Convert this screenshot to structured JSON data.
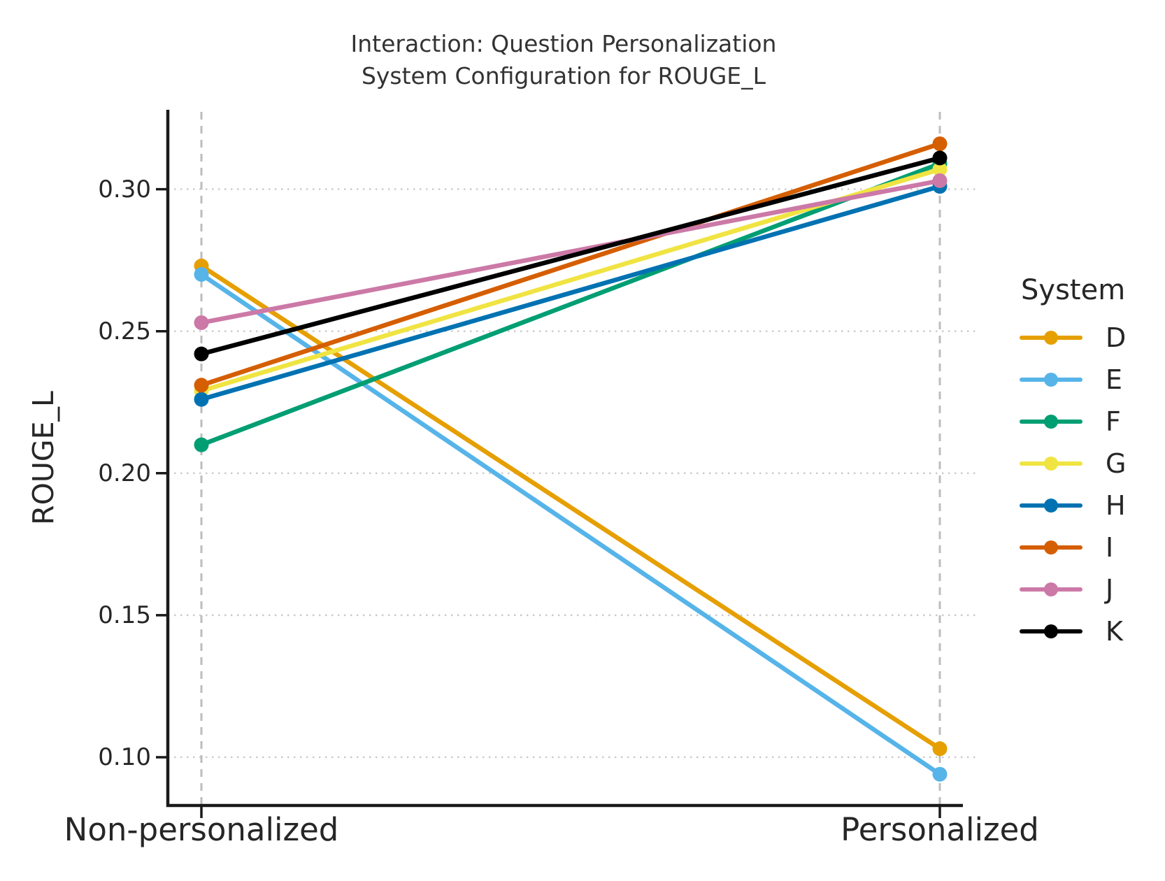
{
  "chart_data": {
    "type": "line",
    "title_lines": [
      "Interaction: Question Personalization",
      "System Configuration for ROUGE_L"
    ],
    "xlabel": "",
    "ylabel": "ROUGE_L",
    "categories": [
      "Non-personalized",
      "Personalized"
    ],
    "yticks": [
      0.1,
      0.15,
      0.2,
      0.25,
      0.3
    ],
    "ytick_labels": [
      "0.10",
      "0.15",
      "0.20",
      "0.25",
      "0.30"
    ],
    "ylim": [
      0.083,
      0.326
    ],
    "grid": {
      "horizontal": "dotted",
      "vertical": "dashed",
      "on": true
    },
    "legend_title": "System",
    "legend_position": "right",
    "series": [
      {
        "name": "D",
        "color": "#E69F00",
        "values": [
          0.273,
          0.103
        ]
      },
      {
        "name": "E",
        "color": "#56B4E9",
        "values": [
          0.27,
          0.094
        ]
      },
      {
        "name": "F",
        "color": "#009E73",
        "values": [
          0.21,
          0.309
        ]
      },
      {
        "name": "G",
        "color": "#F0E442",
        "values": [
          0.229,
          0.307
        ]
      },
      {
        "name": "H",
        "color": "#0072B2",
        "values": [
          0.226,
          0.301
        ]
      },
      {
        "name": "I",
        "color": "#D55E00",
        "values": [
          0.231,
          0.316
        ]
      },
      {
        "name": "J",
        "color": "#CC79A7",
        "values": [
          0.253,
          0.303
        ]
      },
      {
        "name": "K",
        "color": "#000000",
        "values": [
          0.242,
          0.311
        ]
      }
    ],
    "colors": {
      "spine": "#1a1a1a",
      "grid_dotted": "#c9c9c9",
      "grid_dashed": "#bdbdbd",
      "text": "#262626",
      "title": "#333333"
    }
  }
}
